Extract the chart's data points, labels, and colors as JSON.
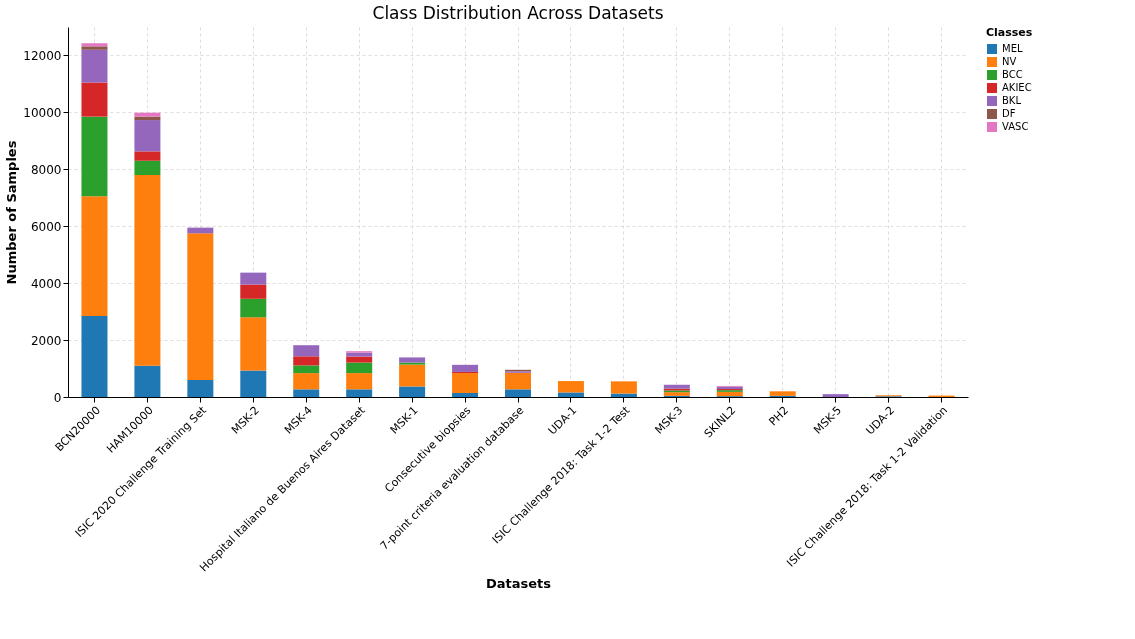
{
  "chart_data": {
    "type": "bar",
    "stacked": true,
    "title": "Class Distribution Across Datasets",
    "xlabel": "Datasets",
    "ylabel": "Number of Samples",
    "legend_title": "Classes",
    "legend": "top right",
    "grid": true,
    "categories": [
      "BCN20000",
      "HAM10000",
      "ISIC 2020 Challenge Training Set",
      "MSK-2",
      "MSK-4",
      "Hospital Italiano de Buenos Aires Dataset",
      "MSK-1",
      "Consecutive biopsies",
      "7-point criteria evaluation database",
      "UDA-1",
      "ISIC Challenge 2018: Task 1-2 Test",
      "MSK-3",
      "SKINL2",
      "PH2",
      "MSK-5",
      "UDA-2",
      "ISIC Challenge 2018: Task 1-2 Validation"
    ],
    "ylim": [
      0,
      13000
    ],
    "yticks": [
      0,
      2000,
      4000,
      6000,
      8000,
      10000,
      12000
    ],
    "series": [
      {
        "name": "MEL",
        "color": "#1f77b4",
        "values": [
          2850,
          1100,
          600,
          930,
          270,
          270,
          370,
          140,
          270,
          160,
          120,
          40,
          30,
          40,
          null,
          25,
          null
        ]
      },
      {
        "name": "NV",
        "color": "#ff7f0e",
        "values": [
          4200,
          6700,
          5150,
          1870,
          570,
          570,
          770,
          700,
          580,
          400,
          430,
          130,
          150,
          160,
          null,
          35,
          50
        ]
      },
      {
        "name": "BCC",
        "color": "#2ca02c",
        "values": [
          2800,
          500,
          null,
          650,
          270,
          370,
          70,
          null,
          null,
          null,
          null,
          60,
          60,
          null,
          null,
          null,
          null
        ]
      },
      {
        "name": "AKIEC",
        "color": "#d62728",
        "values": [
          1200,
          330,
          null,
          500,
          320,
          210,
          null,
          40,
          null,
          null,
          null,
          60,
          40,
          null,
          null,
          null,
          null
        ]
      },
      {
        "name": "BKL",
        "color": "#9467bd",
        "values": [
          1150,
          1100,
          200,
          420,
          390,
          140,
          180,
          250,
          50,
          null,
          null,
          140,
          80,
          null,
          100,
          null,
          null
        ]
      },
      {
        "name": "DF",
        "color": "#8c564b",
        "values": [
          120,
          120,
          null,
          null,
          null,
          null,
          null,
          null,
          55,
          null,
          null,
          null,
          null,
          null,
          null,
          null,
          null
        ]
      },
      {
        "name": "VASC",
        "color": "#e377c2",
        "values": [
          110,
          140,
          null,
          null,
          null,
          50,
          null,
          null,
          null,
          null,
          null,
          null,
          30,
          null,
          null,
          null,
          null
        ]
      }
    ]
  }
}
